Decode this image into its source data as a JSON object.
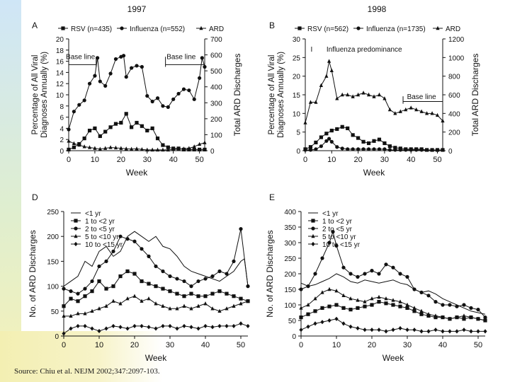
{
  "source": "Source: Chiu et al. NEJM 2002;347:2097-103.",
  "chart_data": [
    {
      "panel_letter": "A",
      "type": "line",
      "year": "1997",
      "xlabel": "Week",
      "ylabel": "Percentage of All Viral Diagnoses Annually (%)",
      "y2label": "Total ARD Discharges",
      "xlim": [
        0,
        52
      ],
      "xticks": [
        0,
        10,
        20,
        30,
        40,
        50
      ],
      "ylim": [
        0,
        20
      ],
      "yticks": [
        0,
        2,
        4,
        6,
        8,
        10,
        12,
        14,
        16,
        18,
        20
      ],
      "y2lim": [
        0,
        700
      ],
      "y2ticks": [
        0,
        100,
        200,
        300,
        400,
        500,
        600,
        700
      ],
      "annotations": [
        "Base line",
        "Base line"
      ],
      "series": [
        {
          "name": "RSV (n=435)",
          "marker": "square",
          "axis": "left",
          "x": [
            0,
            2,
            4,
            6,
            8,
            10,
            12,
            14,
            16,
            18,
            20,
            22,
            24,
            26,
            28,
            30,
            32,
            34,
            36,
            38,
            40,
            42,
            44,
            46,
            48,
            50,
            52
          ],
          "y": [
            0.2,
            0.6,
            1.2,
            2.2,
            3.6,
            4.0,
            2.6,
            3.4,
            4.2,
            4.8,
            5.0,
            6.6,
            4.2,
            5.0,
            4.4,
            3.6,
            4.0,
            2.2,
            1.0,
            0.6,
            0.4,
            0.4,
            0.2,
            0.2,
            0.2,
            0.2,
            0.2
          ]
        },
        {
          "name": "Influenza (n=552)",
          "marker": "dot",
          "axis": "left",
          "x": [
            0,
            2,
            4,
            6,
            8,
            10,
            11,
            12,
            14,
            16,
            18,
            20,
            21,
            22,
            24,
            26,
            28,
            30,
            32,
            34,
            36,
            38,
            40,
            42,
            44,
            46,
            48,
            50,
            51,
            52
          ],
          "y": [
            3.8,
            7.0,
            8.2,
            9.0,
            12.0,
            13.4,
            16.6,
            12.4,
            11.6,
            13.8,
            16.4,
            16.8,
            17.0,
            13.2,
            14.8,
            15.2,
            15.0,
            9.8,
            8.8,
            9.4,
            8.0,
            7.8,
            9.2,
            10.2,
            11.0,
            10.8,
            9.2,
            13.0,
            16.6,
            15.0
          ]
        },
        {
          "name": "ARD",
          "marker": "triangle",
          "axis": "right",
          "x": [
            0,
            2,
            4,
            6,
            8,
            10,
            12,
            14,
            16,
            18,
            20,
            22,
            24,
            26,
            28,
            30,
            32,
            34,
            36,
            38,
            40,
            42,
            44,
            46,
            48,
            50,
            52
          ],
          "y": [
            60,
            45,
            35,
            25,
            20,
            15,
            10,
            15,
            20,
            18,
            15,
            12,
            10,
            12,
            8,
            5,
            5,
            5,
            5,
            5,
            8,
            10,
            12,
            15,
            25,
            40,
            50
          ]
        }
      ]
    },
    {
      "panel_letter": "B",
      "type": "line",
      "year": "1998",
      "xlabel": "Week",
      "ylabel": "Percentage of All Viral Diagnoses Annually (%)",
      "y2label": "Total ARD Discharges",
      "xlim": [
        0,
        52
      ],
      "xticks": [
        0,
        10,
        20,
        30,
        40,
        50
      ],
      "ylim": [
        0,
        30
      ],
      "yticks": [
        0,
        5,
        10,
        15,
        20,
        25,
        30
      ],
      "y2lim": [
        0,
        1200
      ],
      "y2ticks": [
        0,
        200,
        400,
        600,
        800,
        1000,
        1200
      ],
      "annotations": [
        "I",
        "Influenza predominance",
        "Base line"
      ],
      "series": [
        {
          "name": "RSV (n=562)",
          "marker": "square",
          "axis": "left",
          "x": [
            0,
            2,
            4,
            6,
            8,
            10,
            12,
            14,
            16,
            18,
            20,
            22,
            24,
            26,
            28,
            30,
            32,
            34,
            36,
            38,
            40,
            42,
            44,
            46,
            48,
            50,
            52
          ],
          "y": [
            0.4,
            1.0,
            2.2,
            3.6,
            4.6,
            5.4,
            5.8,
            6.4,
            6.0,
            4.2,
            3.4,
            2.4,
            2.0,
            2.6,
            3.0,
            2.0,
            1.2,
            0.8,
            0.6,
            0.4,
            0.4,
            0.4,
            0.4,
            0.2,
            0.2,
            0.2,
            0.2
          ]
        },
        {
          "name": "Influenza (n=1735)",
          "marker": "dot",
          "axis": "left",
          "x": [
            0,
            2,
            4,
            6,
            8,
            9,
            10,
            12,
            14,
            16,
            18,
            20,
            22,
            24,
            26,
            28,
            30,
            32,
            34,
            36,
            38,
            40,
            42,
            44,
            46,
            48,
            50,
            52
          ],
          "y": [
            0.2,
            0.2,
            0.4,
            1.2,
            2.6,
            3.2,
            2.4,
            1.0,
            0.6,
            0.4,
            0.4,
            0.4,
            0.4,
            0.4,
            0.4,
            0.4,
            0.4,
            0.2,
            0.2,
            0.2,
            0.2,
            0.2,
            0.2,
            0.2,
            0.2,
            0.2,
            0.2,
            0.2
          ]
        },
        {
          "name": "ARD",
          "marker": "triangle",
          "axis": "right",
          "x": [
            0,
            2,
            4,
            6,
            8,
            9,
            10,
            12,
            14,
            16,
            18,
            20,
            22,
            24,
            26,
            28,
            30,
            32,
            34,
            36,
            38,
            40,
            42,
            44,
            46,
            48,
            50,
            52
          ],
          "y": [
            300,
            520,
            520,
            700,
            800,
            960,
            860,
            560,
            600,
            600,
            580,
            600,
            620,
            600,
            580,
            600,
            560,
            440,
            400,
            420,
            440,
            460,
            440,
            420,
            400,
            400,
            380,
            320
          ]
        }
      ]
    },
    {
      "panel_letter": "D",
      "type": "line",
      "xlabel": "Week",
      "ylabel": "No. of ARD Discharges",
      "xlim": [
        0,
        52
      ],
      "xticks": [
        0,
        10,
        20,
        30,
        40,
        50
      ],
      "ylim": [
        0,
        250
      ],
      "yticks": [
        0,
        50,
        100,
        150,
        200,
        250
      ],
      "series": [
        {
          "name": "<1 yr",
          "marker": "line",
          "x": [
            0,
            2,
            4,
            6,
            8,
            10,
            12,
            14,
            16,
            18,
            20,
            22,
            24,
            26,
            28,
            30,
            32,
            34,
            36,
            38,
            40,
            42,
            44,
            46,
            48,
            50,
            51,
            52
          ],
          "y": [
            100,
            110,
            120,
            150,
            140,
            170,
            180,
            160,
            170,
            200,
            210,
            200,
            190,
            200,
            180,
            175,
            160,
            140,
            130,
            125,
            120,
            115,
            110,
            120,
            130,
            150,
            155,
            100
          ]
        },
        {
          "name": "1 to <2 yr",
          "marker": "square",
          "x": [
            0,
            2,
            4,
            6,
            8,
            10,
            12,
            14,
            16,
            18,
            20,
            22,
            24,
            26,
            28,
            30,
            32,
            34,
            36,
            38,
            40,
            42,
            44,
            46,
            48,
            50,
            52
          ],
          "y": [
            60,
            75,
            70,
            80,
            90,
            110,
            95,
            100,
            120,
            130,
            125,
            110,
            105,
            100,
            95,
            90,
            85,
            80,
            85,
            80,
            80,
            85,
            90,
            85,
            80,
            75,
            70
          ]
        },
        {
          "name": "2 to <5 yr",
          "marker": "dot",
          "x": [
            0,
            2,
            4,
            6,
            8,
            10,
            12,
            14,
            16,
            18,
            20,
            22,
            24,
            26,
            28,
            30,
            32,
            34,
            36,
            38,
            40,
            42,
            44,
            46,
            48,
            50,
            52
          ],
          "y": [
            95,
            90,
            85,
            95,
            110,
            140,
            150,
            170,
            200,
            195,
            190,
            175,
            160,
            140,
            130,
            120,
            115,
            110,
            100,
            110,
            115,
            120,
            130,
            125,
            150,
            215,
            100
          ]
        },
        {
          "name": "5 to <10 yr",
          "marker": "triangle",
          "x": [
            0,
            2,
            4,
            6,
            8,
            10,
            12,
            14,
            16,
            18,
            20,
            22,
            24,
            26,
            28,
            30,
            32,
            34,
            36,
            38,
            40,
            42,
            44,
            46,
            48,
            50,
            52
          ],
          "y": [
            40,
            40,
            45,
            45,
            50,
            55,
            60,
            70,
            65,
            75,
            80,
            70,
            75,
            65,
            60,
            55,
            55,
            60,
            55,
            60,
            65,
            55,
            50,
            55,
            60,
            65,
            70
          ]
        },
        {
          "name": "10 to <15 yr",
          "marker": "diamond",
          "x": [
            0,
            2,
            4,
            6,
            8,
            10,
            12,
            14,
            16,
            18,
            20,
            22,
            24,
            26,
            28,
            30,
            32,
            34,
            36,
            38,
            40,
            42,
            44,
            46,
            48,
            50,
            52
          ],
          "y": [
            5,
            15,
            20,
            20,
            15,
            10,
            15,
            20,
            18,
            15,
            20,
            20,
            18,
            15,
            20,
            20,
            15,
            20,
            18,
            15,
            20,
            18,
            20,
            20,
            20,
            25,
            20
          ]
        }
      ]
    },
    {
      "panel_letter": "E",
      "type": "line",
      "xlabel": "Week",
      "ylabel": "No. of ARD Discharges",
      "xlim": [
        0,
        52
      ],
      "xticks": [
        0,
        10,
        20,
        30,
        40,
        50
      ],
      "ylim": [
        0,
        400
      ],
      "yticks": [
        0,
        50,
        100,
        150,
        200,
        250,
        300,
        350,
        400
      ],
      "series": [
        {
          "name": "<1 yr",
          "marker": "line",
          "x": [
            0,
            2,
            4,
            6,
            8,
            10,
            12,
            14,
            16,
            18,
            20,
            22,
            24,
            26,
            28,
            30,
            32,
            34,
            36,
            38,
            40,
            42,
            44,
            46,
            48,
            50,
            52
          ],
          "y": [
            170,
            160,
            165,
            175,
            185,
            200,
            190,
            175,
            170,
            180,
            175,
            170,
            175,
            180,
            170,
            165,
            150,
            140,
            145,
            135,
            120,
            110,
            100,
            90,
            80,
            75,
            70
          ]
        },
        {
          "name": "1 to <2 yr",
          "marker": "square",
          "x": [
            0,
            2,
            4,
            6,
            8,
            10,
            12,
            14,
            16,
            18,
            20,
            22,
            24,
            26,
            28,
            30,
            32,
            34,
            36,
            38,
            40,
            42,
            44,
            46,
            48,
            50,
            52
          ],
          "y": [
            60,
            70,
            80,
            90,
            95,
            100,
            90,
            85,
            90,
            95,
            100,
            110,
            105,
            100,
            95,
            90,
            80,
            70,
            65,
            60,
            60,
            55,
            60,
            55,
            60,
            55,
            50
          ]
        },
        {
          "name": "2 to <5 yr",
          "marker": "dot",
          "x": [
            0,
            2,
            4,
            6,
            8,
            9,
            10,
            12,
            14,
            16,
            18,
            20,
            22,
            24,
            26,
            28,
            30,
            32,
            34,
            36,
            38,
            40,
            42,
            44,
            46,
            48,
            50,
            52
          ],
          "y": [
            150,
            160,
            200,
            250,
            300,
            335,
            290,
            220,
            200,
            190,
            200,
            210,
            200,
            230,
            220,
            200,
            190,
            150,
            140,
            130,
            110,
            100,
            100,
            95,
            100,
            90,
            85,
            60
          ]
        },
        {
          "name": "5 to <10 yr",
          "marker": "triangle",
          "x": [
            0,
            2,
            4,
            6,
            8,
            10,
            12,
            14,
            16,
            18,
            20,
            22,
            24,
            26,
            28,
            30,
            32,
            34,
            36,
            38,
            40,
            42,
            44,
            46,
            48,
            50,
            52
          ],
          "y": [
            90,
            100,
            120,
            140,
            150,
            145,
            130,
            120,
            115,
            110,
            120,
            125,
            120,
            115,
            110,
            100,
            90,
            80,
            70,
            65,
            60,
            55,
            60,
            65,
            60,
            55,
            50
          ]
        },
        {
          "name": "10 to <15 yr",
          "marker": "diamond",
          "x": [
            0,
            2,
            4,
            6,
            8,
            10,
            12,
            14,
            16,
            18,
            20,
            22,
            24,
            26,
            28,
            30,
            32,
            34,
            36,
            38,
            40,
            42,
            44,
            46,
            48,
            50,
            52
          ],
          "y": [
            20,
            30,
            40,
            45,
            50,
            55,
            40,
            30,
            25,
            20,
            20,
            20,
            15,
            20,
            25,
            20,
            20,
            15,
            15,
            20,
            15,
            15,
            15,
            20,
            15,
            15,
            15
          ]
        }
      ]
    }
  ]
}
